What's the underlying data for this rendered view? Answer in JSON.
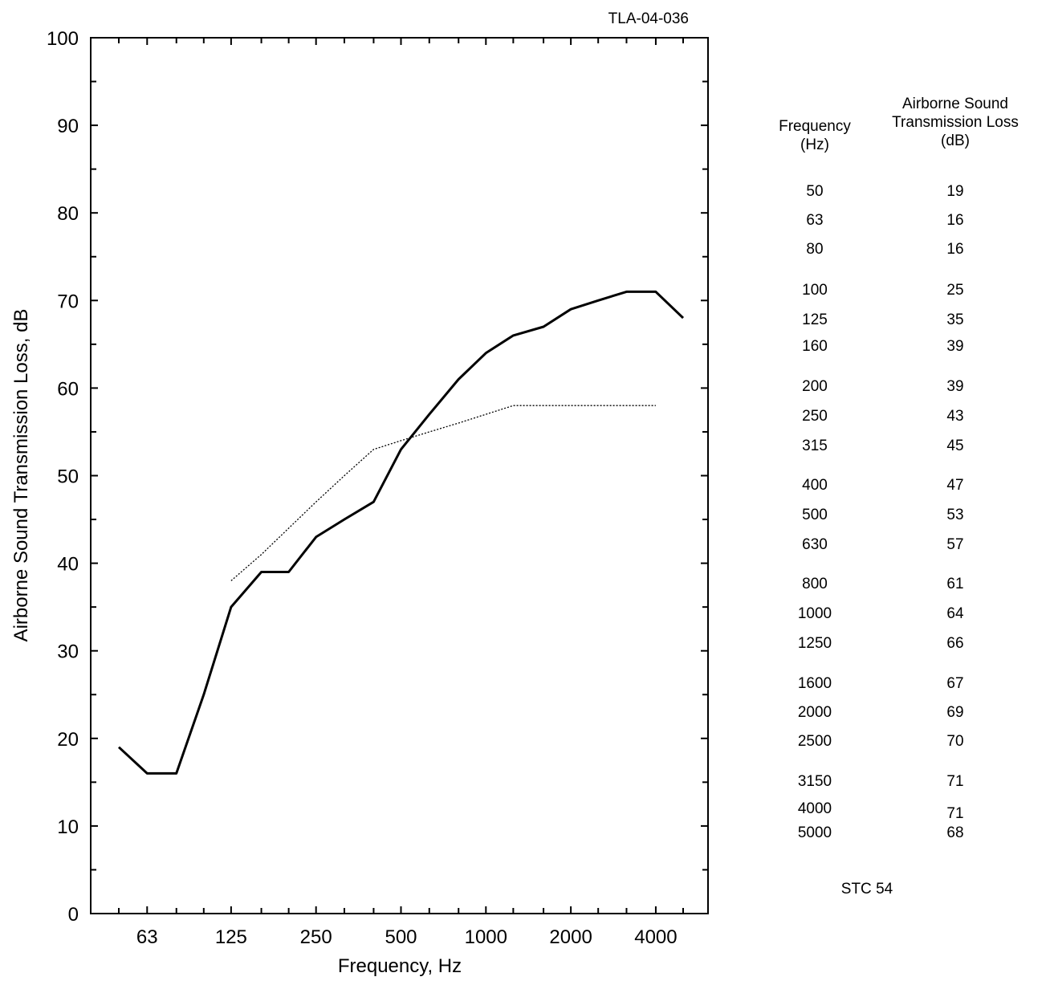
{
  "chart_data": {
    "type": "line",
    "report_id": "TLA-04-036",
    "xlabel": "Frequency, Hz",
    "ylabel": "Airborne Sound Transmission Loss, dB",
    "x_scale": "log",
    "x_tick_labels": [
      "63",
      "125",
      "250",
      "500",
      "1000",
      "2000",
      "4000"
    ],
    "x_tick_values": [
      63,
      125,
      250,
      500,
      1000,
      2000,
      4000
    ],
    "y_tick_labels": [
      "0",
      "10",
      "20",
      "30",
      "40",
      "50",
      "60",
      "70",
      "80",
      "90",
      "100"
    ],
    "y_tick_values": [
      0,
      10,
      20,
      30,
      40,
      50,
      60,
      70,
      80,
      90,
      100
    ],
    "ylim": [
      0,
      100
    ],
    "grid": false,
    "series": [
      {
        "style": "solid",
        "color": "#000000",
        "x": [
          50,
          63,
          80,
          100,
          125,
          160,
          200,
          250,
          315,
          400,
          500,
          630,
          800,
          1000,
          1250,
          1600,
          2000,
          2500,
          3150,
          4000,
          5000
        ],
        "y": [
          19,
          16,
          16,
          25,
          35,
          39,
          39,
          43,
          45,
          47,
          53,
          57,
          61,
          64,
          66,
          67,
          69,
          70,
          71,
          71,
          68
        ]
      },
      {
        "style": "dotted",
        "color": "#000000",
        "x": [
          125,
          160,
          200,
          250,
          315,
          400,
          500,
          630,
          800,
          1000,
          1250,
          1600,
          2000,
          2500,
          3150,
          4000
        ],
        "y": [
          38,
          41,
          44,
          47,
          50,
          53,
          54,
          55,
          56,
          57,
          58,
          58,
          58,
          58,
          58,
          58
        ]
      }
    ]
  },
  "table": {
    "col1_header": [
      "Frequency",
      "(Hz)"
    ],
    "col2_header": [
      "Airborne Sound",
      "Transmission Loss",
      "(dB)"
    ],
    "rows": [
      {
        "freq": "50",
        "tl": "19"
      },
      {
        "freq": "63",
        "tl": "16"
      },
      {
        "freq": "80",
        "tl": "16"
      },
      {
        "freq": "100",
        "tl": "25"
      },
      {
        "freq": "125",
        "tl": "35"
      },
      {
        "freq": "160",
        "tl": "39"
      },
      {
        "freq": "200",
        "tl": "39"
      },
      {
        "freq": "250",
        "tl": "43"
      },
      {
        "freq": "315",
        "tl": "45"
      },
      {
        "freq": "400",
        "tl": "47"
      },
      {
        "freq": "500",
        "tl": "53"
      },
      {
        "freq": "630",
        "tl": "57"
      },
      {
        "freq": "800",
        "tl": "61"
      },
      {
        "freq": "1000",
        "tl": "64"
      },
      {
        "freq": "1250",
        "tl": "66"
      },
      {
        "freq": "1600",
        "tl": "67"
      },
      {
        "freq": "2000",
        "tl": "69"
      },
      {
        "freq": "2500",
        "tl": "70"
      },
      {
        "freq": "3150",
        "tl": "71"
      },
      {
        "freq": "4000",
        "tl": "71"
      },
      {
        "freq": "5000",
        "tl": "68"
      }
    ],
    "stc_label": "STC",
    "stc_value": "54"
  }
}
